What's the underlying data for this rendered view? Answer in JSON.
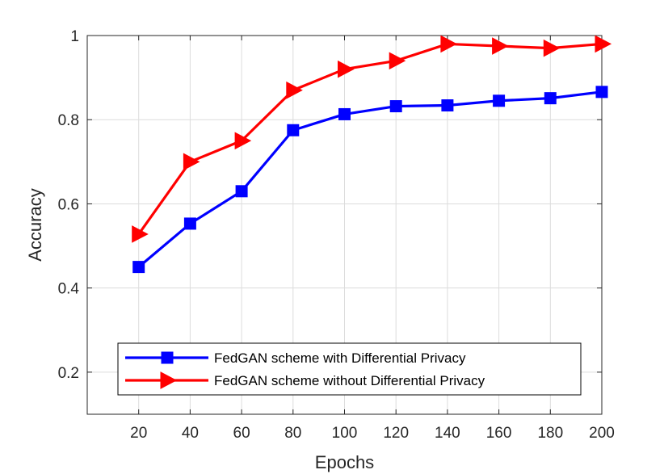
{
  "chart_data": {
    "type": "line",
    "title": "",
    "xlabel": "Epochs",
    "ylabel": "Accuracy",
    "x": [
      20,
      40,
      60,
      80,
      100,
      120,
      140,
      160,
      180,
      200
    ],
    "xticks": [
      "20",
      "40",
      "60",
      "80",
      "100",
      "120",
      "140",
      "160",
      "180",
      "200"
    ],
    "yticks": [
      "0.2",
      "0.4",
      "0.6",
      "0.8",
      "1"
    ],
    "xlim": [
      0,
      200
    ],
    "ylim": [
      0.1,
      1.0
    ],
    "grid": true,
    "legend_position": "bottom-center",
    "series": [
      {
        "name": "FedGAN scheme with Differential Privacy",
        "color": "#0000ff",
        "marker": "square",
        "values": [
          0.45,
          0.553,
          0.63,
          0.775,
          0.813,
          0.832,
          0.834,
          0.845,
          0.851,
          0.866
        ]
      },
      {
        "name": "FedGAN scheme without Differential Privacy",
        "color": "#ff0000",
        "marker": "triangle-right",
        "values": [
          0.528,
          0.7,
          0.75,
          0.87,
          0.92,
          0.94,
          0.98,
          0.975,
          0.97,
          0.98
        ]
      }
    ]
  }
}
